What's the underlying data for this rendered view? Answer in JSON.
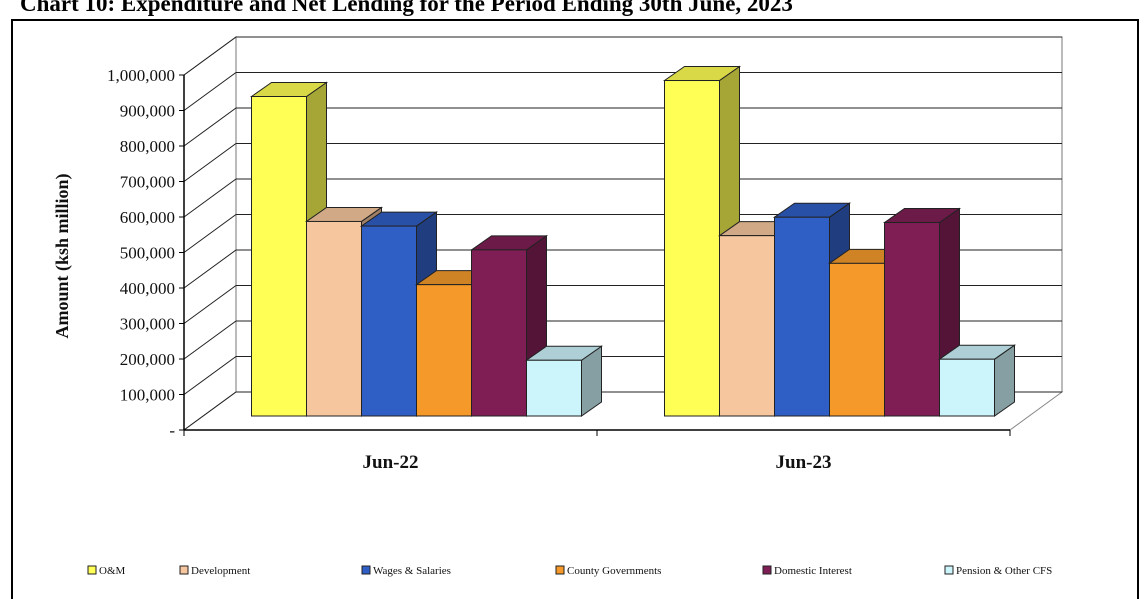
{
  "chart_data": {
    "type": "bar",
    "title": "Chart 10: Expenditure and Net Lending for the Period Ending 30th June, 2023",
    "ylabel": "Amount  (ksh million)",
    "xlabel": "",
    "ylim": [
      0,
      1000000
    ],
    "ytick_labels": [
      "-",
      "100,000",
      "200,000",
      "300,000",
      "400,000",
      "500,000",
      "600,000",
      "700,000",
      "800,000",
      "900,000",
      "1,000,000"
    ],
    "categories": [
      "Jun-22",
      "Jun-23"
    ],
    "series": [
      {
        "name": "O&M",
        "values": [
          900000,
          945000
        ],
        "color": "#ffff55"
      },
      {
        "name": "Development",
        "values": [
          548000,
          508000
        ],
        "color": "#f6c79f"
      },
      {
        "name": "Wages & Salaries",
        "values": [
          535000,
          560000
        ],
        "color": "#2f5ec4"
      },
      {
        "name": "County Governments",
        "values": [
          370000,
          430000
        ],
        "color": "#f59a2a"
      },
      {
        "name": "Domestic Interest",
        "values": [
          468000,
          545000
        ],
        "color": "#7f1e55"
      },
      {
        "name": "Pension & Other CFS",
        "values": [
          157000,
          160000
        ],
        "color": "#ccf4fb"
      }
    ],
    "legend_position": "bottom",
    "grid": true,
    "style": "3d-clustered-column"
  }
}
